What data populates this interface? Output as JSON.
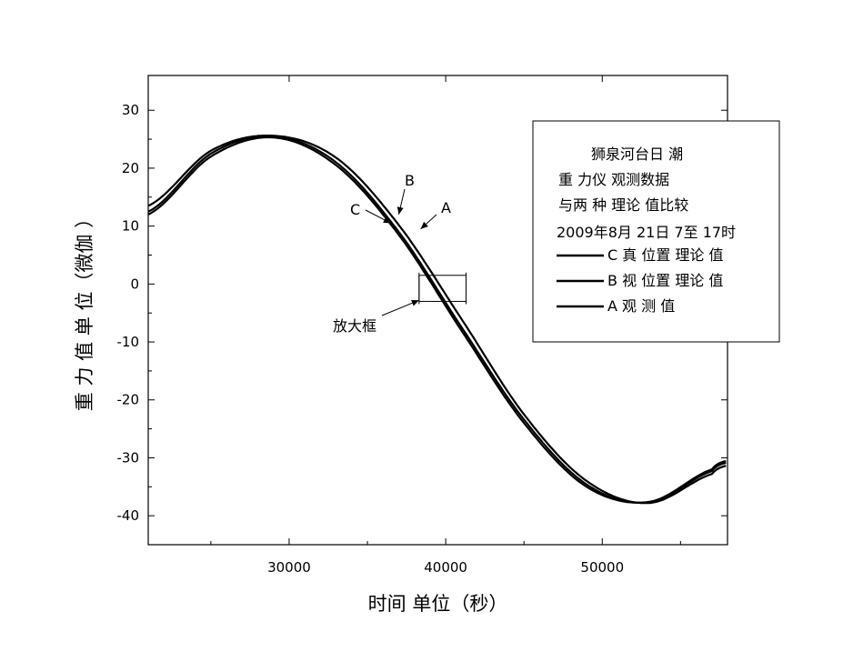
{
  "chart_data": {
    "type": "line",
    "xlabel": "时间 单位（秒）",
    "ylabel": "重 力 值 单 位（微伽 ）",
    "xlim": [
      21000,
      58000
    ],
    "ylim": [
      -45,
      36
    ],
    "xticks": [
      30000,
      40000,
      50000
    ],
    "yticks": [
      30,
      20,
      10,
      0,
      -10,
      -20,
      -30,
      -40
    ],
    "xtick_labels": [
      "30000",
      "40000",
      "50000"
    ],
    "ytick_labels": [
      "30",
      "20",
      "10",
      "0",
      "-10",
      "-20",
      "-30",
      "-40"
    ],
    "legend_placement": "top-right",
    "legend_title": [
      "狮泉河台日 潮",
      "重 力仪 观测数据",
      "与两 种 理论 值比较",
      "2009年8月 21日 7至 17时"
    ],
    "series": [
      {
        "name": "C 真  位置 理论 值",
        "x": [
          21000,
          25000,
          29000,
          33000,
          37000,
          41000,
          45000,
          49000,
          53000,
          57000,
          58000
        ],
        "y": [
          12.0,
          22.0,
          25.3,
          20.5,
          8.5,
          -8.0,
          -24.0,
          -35.0,
          -37.6,
          -32.0,
          -30.5
        ]
      },
      {
        "name": "B 视 位置 理论 值",
        "x": [
          21000,
          25000,
          29000,
          33000,
          37000,
          41000,
          45000,
          49000,
          53000,
          57000,
          58000
        ],
        "y": [
          12.5,
          22.5,
          25.5,
          21.0,
          9.0,
          -7.4,
          -23.4,
          -34.6,
          -37.7,
          -32.3,
          -30.8
        ]
      },
      {
        "name": "A 观 测 值",
        "x": [
          21000,
          25000,
          29000,
          33000,
          37000,
          41000,
          45000,
          49000,
          53000,
          57000,
          58000
        ],
        "y": [
          13.5,
          23.0,
          25.6,
          21.8,
          10.2,
          -6.0,
          -22.5,
          -34.0,
          -37.8,
          -32.8,
          -31.3
        ]
      }
    ],
    "annotations": [
      {
        "text": "A",
        "point_x": 38400,
        "point_y": 9.5
      },
      {
        "text": "B",
        "point_x": 37000,
        "point_y": 12.0
      },
      {
        "text": "C",
        "point_x": 36500,
        "point_y": 10.5
      },
      {
        "text": "放大框",
        "point_x": 38300,
        "point_y": -2.8
      }
    ],
    "zoom_box": {
      "x": [
        38300,
        41300
      ],
      "y": [
        -3.0,
        1.5
      ]
    },
    "line_color": "#000000"
  }
}
